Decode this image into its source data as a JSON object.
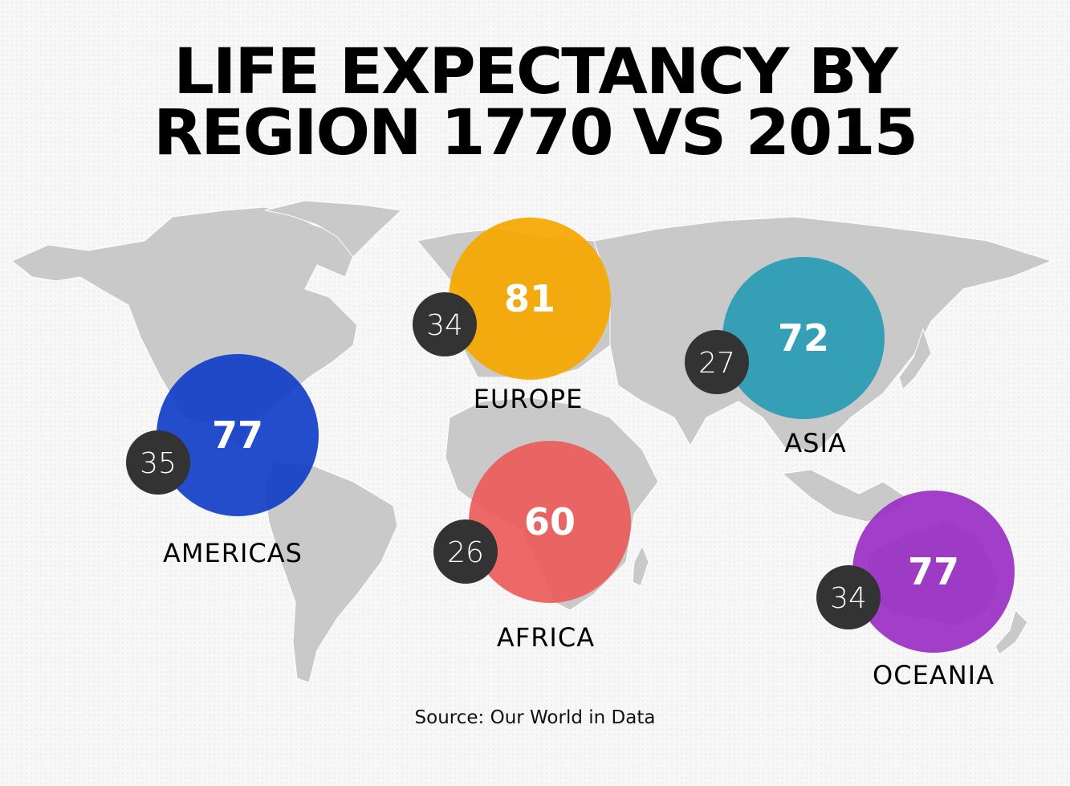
{
  "title": {
    "line1": "LIFE EXPECTANCY BY",
    "line2": "REGION 1770 VS 2015"
  },
  "source": "Source: Our World in Data",
  "colors": {
    "americas": "#1340c8",
    "europe": "#f5a800",
    "asia": "#2a9cb5",
    "africa": "#ec5e5b",
    "oceania": "#9b30c4",
    "old_value_bubble": "#333333",
    "land": "#c9c9c9"
  },
  "chart_data": {
    "type": "bubble-map",
    "title": "LIFE EXPECTANCY BY REGION 1770 VS 2015",
    "source": "Source: Our World in Data",
    "series": [
      {
        "name": "1770",
        "values": [
          35,
          34,
          27,
          26,
          34
        ]
      },
      {
        "name": "2015",
        "values": [
          77,
          81,
          72,
          60,
          77
        ]
      }
    ],
    "categories": [
      "AMERICAS",
      "EUROPE",
      "ASIA",
      "AFRICA",
      "OCEANIA"
    ],
    "regions": [
      {
        "name": "AMERICAS",
        "y1770": 35,
        "y2015": 77,
        "color": "#1340c8"
      },
      {
        "name": "EUROPE",
        "y1770": 34,
        "y2015": 81,
        "color": "#f5a800"
      },
      {
        "name": "ASIA",
        "y1770": 27,
        "y2015": 72,
        "color": "#2a9cb5"
      },
      {
        "name": "AFRICA",
        "y1770": 26,
        "y2015": 60,
        "color": "#ec5e5b"
      },
      {
        "name": "OCEANIA",
        "y1770": 34,
        "y2015": 77,
        "color": "#9b30c4"
      }
    ]
  }
}
